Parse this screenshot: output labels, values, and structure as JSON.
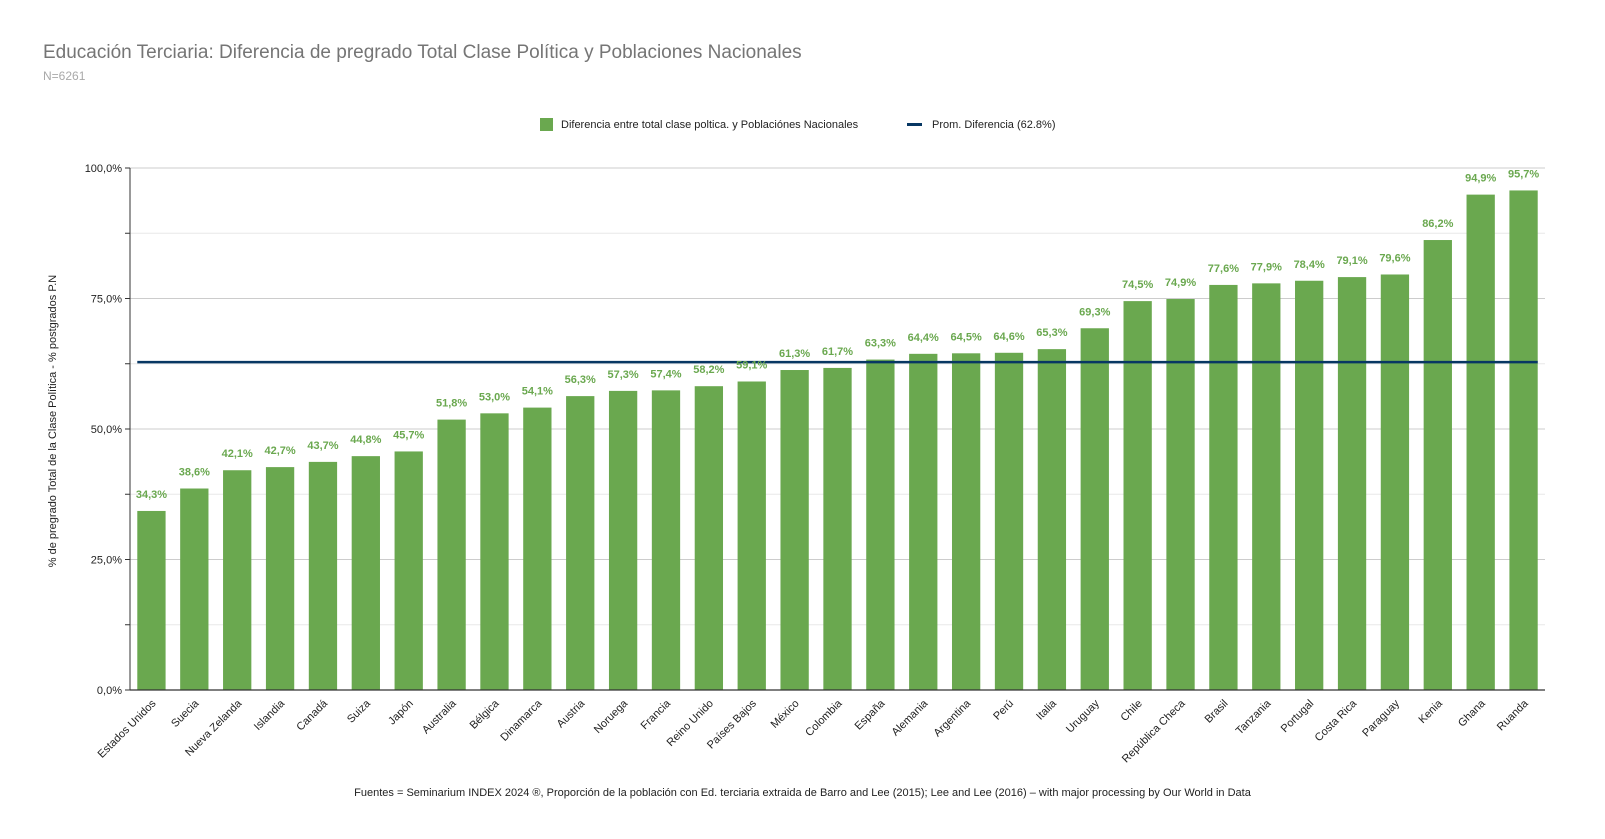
{
  "chart_data": {
    "type": "bar",
    "title": "Educación Terciaria: Diferencia de pregrado Total Clase Política y Poblaciones Nacionales",
    "subtitle": "N=6261",
    "ylabel": "% de pregrado Total de la Clase Política - % postgrados P.N",
    "xlabel": "",
    "ylim": [
      0,
      100
    ],
    "yticks": [
      {
        "value": 0,
        "label": "0,0%"
      },
      {
        "value": 25,
        "label": "25,0%"
      },
      {
        "value": 50,
        "label": "50,0%"
      },
      {
        "value": 75,
        "label": "75,0%"
      },
      {
        "value": 100,
        "label": "100,0%"
      }
    ],
    "grid": true,
    "legend_position": "top",
    "categories": [
      "Estados Unidos",
      "Suecia",
      "Nueva Zelanda",
      "Islandia",
      "Canadá",
      "Suiza",
      "Japón",
      "Australia",
      "Bélgica",
      "Dinamarca",
      "Austria",
      "Noruega",
      "Francia",
      "Reino Unido",
      "Países Bajos",
      "México",
      "Colombia",
      "España",
      "Alemania",
      "Argentina",
      "Perú",
      "Italia",
      "Uruguay",
      "Chile",
      "República Checa",
      "Brasil",
      "Tanzania",
      "Portugal",
      "Costa Rica",
      "Paraguay",
      "Kenia",
      "Ghana",
      "Ruanda"
    ],
    "series": [
      {
        "name": "Diferencia entre total clase poltica. y Poblaciónes Nacionales",
        "type": "bar",
        "color": "#6aa84f",
        "values": [
          34.3,
          38.6,
          42.1,
          42.7,
          43.7,
          44.8,
          45.7,
          51.8,
          53.0,
          54.1,
          56.3,
          57.3,
          57.4,
          58.2,
          59.1,
          61.3,
          61.7,
          63.3,
          64.4,
          64.5,
          64.6,
          65.3,
          69.3,
          74.5,
          74.9,
          77.6,
          77.9,
          78.4,
          79.1,
          79.6,
          86.2,
          94.9,
          95.7
        ],
        "labels": [
          "34,3%",
          "38,6%",
          "42,1%",
          "42,7%",
          "43,7%",
          "44,8%",
          "45,7%",
          "51,8%",
          "53,0%",
          "54,1%",
          "56,3%",
          "57,3%",
          "57,4%",
          "58,2%",
          "59,1%",
          "61,3%",
          "61,7%",
          "63,3%",
          "64,4%",
          "64,5%",
          "64,6%",
          "65,3%",
          "69,3%",
          "74,5%",
          "74,9%",
          "77,6%",
          "77,9%",
          "78,4%",
          "79,1%",
          "79,6%",
          "86,2%",
          "94,9%",
          "95,7%"
        ]
      },
      {
        "name": "Prom. Diferencia (62.8%)",
        "type": "line",
        "color": "#073763",
        "value": 62.8
      }
    ]
  },
  "footer": "Fuentes = Seminarium INDEX 2024 ®, Proporción de la población con Ed. terciaria extraida de Barro and Lee (2015); Lee and Lee (2016) – with major processing by Our World in Data"
}
